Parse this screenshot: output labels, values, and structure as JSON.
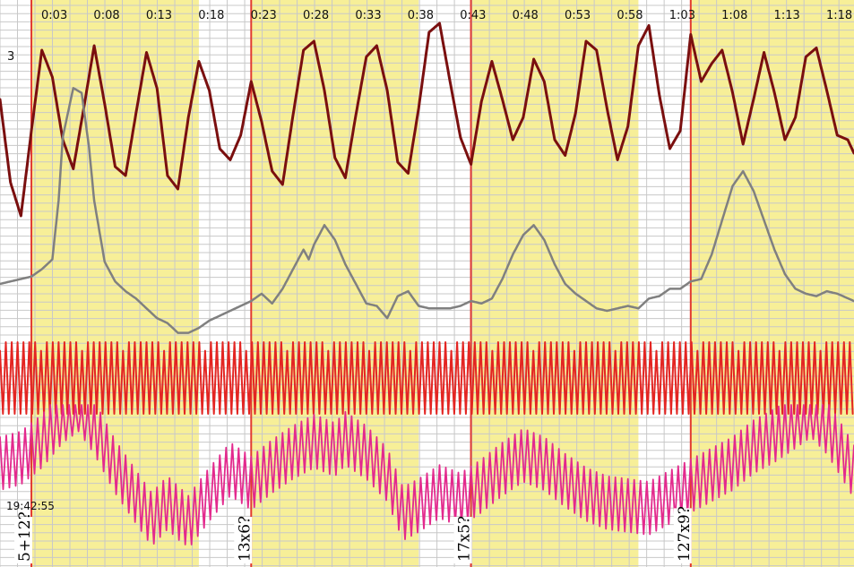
{
  "chart_data": {
    "type": "line",
    "title": "",
    "xlabel": "",
    "ylabel": "",
    "x_axis": {
      "tick_labels": [
        "0:03",
        "0:08",
        "0:13",
        "0:18",
        "0:23",
        "0:28",
        "0:33",
        "0:38",
        "0:43",
        "0:48",
        "0:53",
        "0:58",
        "1:03",
        "1:08",
        "1:13",
        "1:18"
      ],
      "tick_seconds": [
        3,
        8,
        13,
        18,
        23,
        28,
        33,
        38,
        43,
        48,
        53,
        58,
        63,
        68,
        73,
        78
      ],
      "range_seconds": [
        0,
        81.6
      ]
    },
    "grid": true,
    "y_axis_edge_label": "3",
    "clock_label": "19:42:55",
    "colors": {
      "background": "#ffffff",
      "highlight": "#f7ef98",
      "grid": "#c8c8c8",
      "marker": "#e23a2f",
      "series_1": "#7a0f0f",
      "series_2": "#808080",
      "series_3": "#e32522",
      "series_4": "#e3298d"
    },
    "highlight_intervals": [
      [
        3,
        19
      ],
      [
        24,
        40
      ],
      [
        45,
        61
      ],
      [
        66,
        82
      ]
    ],
    "marker_lines": [
      3,
      24,
      45,
      66
    ],
    "interval_tags": [
      {
        "label": "5+12?",
        "at": 3
      },
      {
        "label": "13x6?",
        "at": 24
      },
      {
        "label": "17x5?",
        "at": 45
      },
      {
        "label": "127x9?",
        "at": 66
      }
    ],
    "series": [
      {
        "id": "series_1",
        "points": [
          [
            0,
            62
          ],
          [
            1,
            25
          ],
          [
            2,
            10
          ],
          [
            3,
            48
          ],
          [
            4,
            84
          ],
          [
            5,
            72
          ],
          [
            6,
            44
          ],
          [
            7,
            31
          ],
          [
            8,
            58
          ],
          [
            9,
            86
          ],
          [
            10,
            60
          ],
          [
            11,
            32
          ],
          [
            12,
            28
          ],
          [
            13,
            56
          ],
          [
            14,
            83
          ],
          [
            15,
            67
          ],
          [
            16,
            28
          ],
          [
            17,
            22
          ],
          [
            18,
            54
          ],
          [
            19,
            79
          ],
          [
            20,
            66
          ],
          [
            21,
            40
          ],
          [
            22,
            35
          ],
          [
            23,
            46
          ],
          [
            24,
            70
          ],
          [
            25,
            52
          ],
          [
            26,
            30
          ],
          [
            27,
            24
          ],
          [
            28,
            55
          ],
          [
            29,
            84
          ],
          [
            30,
            88
          ],
          [
            31,
            66
          ],
          [
            32,
            36
          ],
          [
            33,
            27
          ],
          [
            34,
            55
          ],
          [
            35,
            81
          ],
          [
            36,
            86
          ],
          [
            37,
            66
          ],
          [
            38,
            34
          ],
          [
            39,
            29
          ],
          [
            40,
            58
          ],
          [
            41,
            92
          ],
          [
            42,
            96
          ],
          [
            43,
            70
          ],
          [
            44,
            45
          ],
          [
            45,
            33
          ],
          [
            46,
            61
          ],
          [
            47,
            79
          ],
          [
            48,
            62
          ],
          [
            49,
            44
          ],
          [
            50,
            54
          ],
          [
            51,
            80
          ],
          [
            52,
            70
          ],
          [
            53,
            44
          ],
          [
            54,
            37
          ],
          [
            55,
            56
          ],
          [
            56,
            88
          ],
          [
            57,
            84
          ],
          [
            58,
            58
          ],
          [
            59,
            35
          ],
          [
            60,
            50
          ],
          [
            61,
            86
          ],
          [
            62,
            95
          ],
          [
            63,
            64
          ],
          [
            64,
            40
          ],
          [
            65,
            48
          ],
          [
            66,
            91
          ],
          [
            67,
            70
          ],
          [
            68,
            78
          ],
          [
            69,
            84
          ],
          [
            70,
            65
          ],
          [
            71,
            42
          ],
          [
            72,
            62
          ],
          [
            73,
            83
          ],
          [
            74,
            65
          ],
          [
            75,
            44
          ],
          [
            76,
            54
          ],
          [
            77,
            81
          ],
          [
            78,
            85
          ],
          [
            79,
            66
          ],
          [
            80,
            46
          ],
          [
            81,
            44
          ],
          [
            81.6,
            38
          ]
        ]
      },
      {
        "id": "series_2",
        "points": [
          [
            0,
            6
          ],
          [
            2,
            8
          ],
          [
            3,
            9
          ],
          [
            4,
            12
          ],
          [
            5,
            16
          ],
          [
            5.6,
            40
          ],
          [
            6,
            66
          ],
          [
            7,
            86
          ],
          [
            7.8,
            84
          ],
          [
            8.5,
            62
          ],
          [
            9,
            40
          ],
          [
            10,
            15
          ],
          [
            11,
            7
          ],
          [
            12,
            3
          ],
          [
            13,
            0
          ],
          [
            14,
            -4
          ],
          [
            15,
            -8
          ],
          [
            16,
            -10
          ],
          [
            17,
            -14
          ],
          [
            18,
            -14
          ],
          [
            19,
            -12
          ],
          [
            20,
            -9
          ],
          [
            21,
            -7
          ],
          [
            22,
            -5
          ],
          [
            23,
            -3
          ],
          [
            24,
            -1
          ],
          [
            25,
            2
          ],
          [
            26,
            -2
          ],
          [
            27,
            4
          ],
          [
            28,
            12
          ],
          [
            29,
            20
          ],
          [
            29.5,
            16
          ],
          [
            30,
            22
          ],
          [
            31,
            30
          ],
          [
            32,
            24
          ],
          [
            33,
            14
          ],
          [
            34,
            6
          ],
          [
            35,
            -2
          ],
          [
            36,
            -3
          ],
          [
            37,
            -8
          ],
          [
            38,
            1
          ],
          [
            39,
            3
          ],
          [
            40,
            -3
          ],
          [
            41,
            -4
          ],
          [
            42,
            -4
          ],
          [
            43,
            -4
          ],
          [
            44,
            -3
          ],
          [
            45,
            -1
          ],
          [
            46,
            -2
          ],
          [
            47,
            0
          ],
          [
            48,
            8
          ],
          [
            49,
            18
          ],
          [
            50,
            26
          ],
          [
            51,
            30
          ],
          [
            52,
            24
          ],
          [
            53,
            14
          ],
          [
            54,
            6
          ],
          [
            55,
            2
          ],
          [
            56,
            -1
          ],
          [
            57,
            -4
          ],
          [
            58,
            -5
          ],
          [
            59,
            -4
          ],
          [
            60,
            -3
          ],
          [
            61,
            -4
          ],
          [
            62,
            0
          ],
          [
            63,
            1
          ],
          [
            64,
            4
          ],
          [
            65,
            4
          ],
          [
            66,
            7
          ],
          [
            67,
            8
          ],
          [
            68,
            18
          ],
          [
            69,
            32
          ],
          [
            70,
            46
          ],
          [
            71,
            52
          ],
          [
            72,
            44
          ],
          [
            73,
            32
          ],
          [
            74,
            20
          ],
          [
            75,
            10
          ],
          [
            76,
            4
          ],
          [
            77,
            2
          ],
          [
            78,
            1
          ],
          [
            79,
            3
          ],
          [
            80,
            2
          ],
          [
            81.6,
            -1
          ]
        ]
      },
      {
        "id": "series_3",
        "oscillation": {
          "start": 0,
          "end": 81.6,
          "period": 0.56,
          "min": 0,
          "max": 100
        }
      },
      {
        "id": "series_4",
        "envelope": [
          [
            0,
            58
          ],
          [
            2,
            62
          ],
          [
            4,
            74
          ],
          [
            6,
            92
          ],
          [
            7.5,
            100
          ],
          [
            9,
            84
          ],
          [
            11,
            56
          ],
          [
            13,
            34
          ],
          [
            14.5,
            18
          ],
          [
            16,
            30
          ],
          [
            18,
            16
          ],
          [
            20,
            36
          ],
          [
            22,
            54
          ],
          [
            24,
            44
          ],
          [
            26,
            56
          ],
          [
            28,
            66
          ],
          [
            30,
            74
          ],
          [
            32,
            68
          ],
          [
            33,
            76
          ],
          [
            35,
            66
          ],
          [
            37,
            50
          ],
          [
            38.5,
            22
          ],
          [
            40,
            28
          ],
          [
            42,
            38
          ],
          [
            44,
            32
          ],
          [
            46,
            42
          ],
          [
            48,
            54
          ],
          [
            50,
            64
          ],
          [
            52,
            58
          ],
          [
            54,
            46
          ],
          [
            56,
            36
          ],
          [
            58,
            30
          ],
          [
            60,
            28
          ],
          [
            62,
            26
          ],
          [
            64,
            34
          ],
          [
            66,
            42
          ],
          [
            68,
            50
          ],
          [
            70,
            58
          ],
          [
            72,
            70
          ],
          [
            74,
            78
          ],
          [
            76,
            88
          ],
          [
            77.5,
            96
          ],
          [
            79,
            84
          ],
          [
            80.5,
            66
          ],
          [
            81.6,
            52
          ]
        ],
        "oscillation": {
          "period": 0.6,
          "amplitude": 38
        }
      }
    ]
  }
}
